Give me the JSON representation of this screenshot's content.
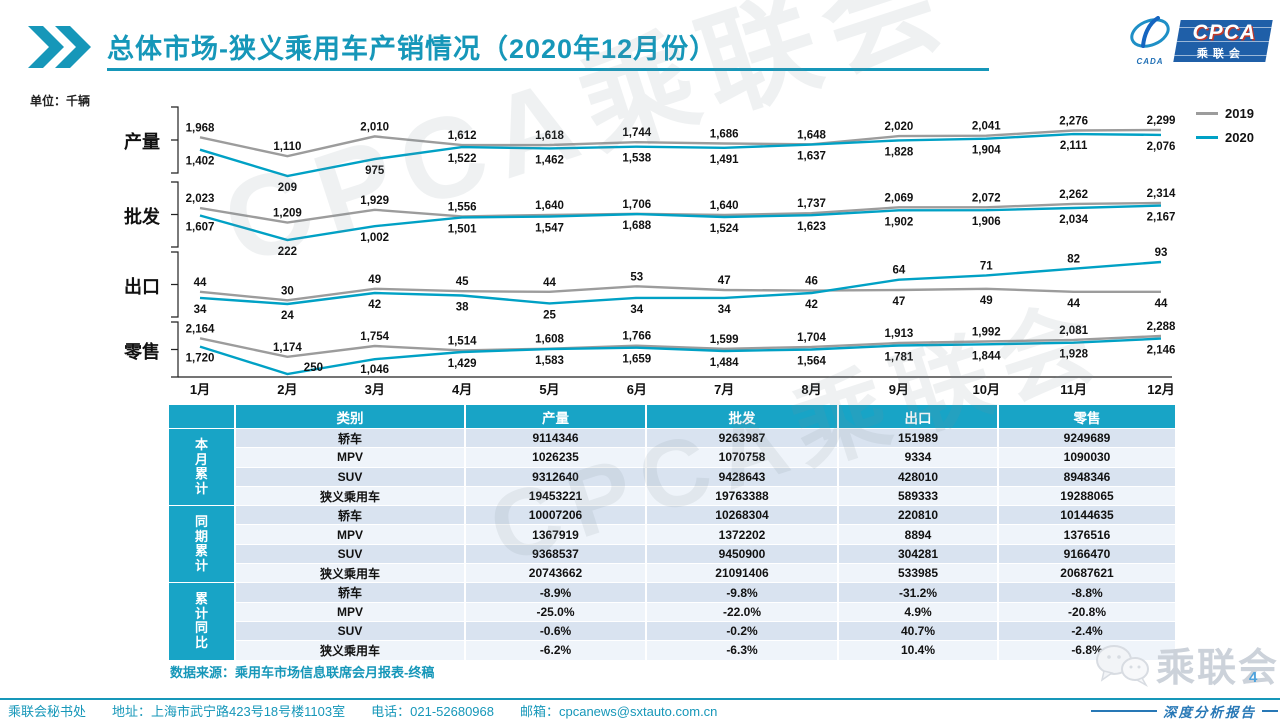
{
  "header": {
    "title": "总体市场-狭义乘用车产销情况（2020年12月份）"
  },
  "logo": {
    "emblem_text": "CADA",
    "main": "CPCA",
    "sub": "乘联会"
  },
  "unit_label": "单位：千辆",
  "chart_data": {
    "type": "line",
    "unit": "千辆",
    "x_labels": [
      "1月",
      "2月",
      "3月",
      "4月",
      "5月",
      "6月",
      "7月",
      "8月",
      "9月",
      "10月",
      "11月",
      "12月"
    ],
    "legend": [
      "2019",
      "2020"
    ],
    "rows": [
      {
        "name": "产量",
        "series": [
          {
            "name": "2019",
            "values": [
              1968,
              1110,
              2010,
              1612,
              1618,
              1744,
              1686,
              1648,
              2020,
              2041,
              2276,
              2299
            ]
          },
          {
            "name": "2020",
            "values": [
              1402,
              209,
              975,
              1522,
              1462,
              1538,
              1491,
              1637,
              1828,
              1904,
              2111,
              2076
            ]
          }
        ]
      },
      {
        "name": "批发",
        "series": [
          {
            "name": "2019",
            "values": [
              2023,
              1209,
              1929,
              1556,
              1640,
              1706,
              1640,
              1737,
              2069,
              2072,
              2262,
              2314
            ]
          },
          {
            "name": "2020",
            "values": [
              1607,
              222,
              1002,
              1501,
              1547,
              1688,
              1524,
              1623,
              1902,
              1906,
              2034,
              2167
            ]
          }
        ]
      },
      {
        "name": "出口",
        "series": [
          {
            "name": "2019",
            "values": [
              44,
              30,
              49,
              45,
              44,
              53,
              47,
              46,
              47,
              49,
              44,
              44
            ]
          },
          {
            "name": "2020",
            "values": [
              34,
              24,
              42,
              38,
              25,
              34,
              34,
              42,
              64,
              71,
              82,
              93
            ]
          }
        ]
      },
      {
        "name": "零售",
        "series": [
          {
            "name": "2019",
            "values": [
              2164,
              1174,
              1754,
              1514,
              1608,
              1766,
              1599,
              1704,
              1913,
              1992,
              2081,
              2288
            ]
          },
          {
            "name": "2020",
            "values": [
              1720,
              250,
              1046,
              1429,
              1583,
              1659,
              1484,
              1564,
              1781,
              1844,
              1928,
              2146
            ]
          }
        ]
      }
    ]
  },
  "table": {
    "headers": [
      "类别",
      "产量",
      "批发",
      "出口",
      "零售"
    ],
    "groups": [
      {
        "label": "本月累计",
        "rows": [
          {
            "name": "轿车",
            "values": [
              "9114346",
              "9263987",
              "151989",
              "9249689"
            ]
          },
          {
            "name": "MPV",
            "values": [
              "1026235",
              "1070758",
              "9334",
              "1090030"
            ]
          },
          {
            "name": "SUV",
            "values": [
              "9312640",
              "9428643",
              "428010",
              "8948346"
            ]
          },
          {
            "name": "狭义乘用车",
            "values": [
              "19453221",
              "19763388",
              "589333",
              "19288065"
            ]
          }
        ]
      },
      {
        "label": "同期累计",
        "rows": [
          {
            "name": "轿车",
            "values": [
              "10007206",
              "10268304",
              "220810",
              "10144635"
            ]
          },
          {
            "name": "MPV",
            "values": [
              "1367919",
              "1372202",
              "8894",
              "1376516"
            ]
          },
          {
            "name": "SUV",
            "values": [
              "9368537",
              "9450900",
              "304281",
              "9166470"
            ]
          },
          {
            "name": "狭义乘用车",
            "values": [
              "20743662",
              "21091406",
              "533985",
              "20687621"
            ]
          }
        ]
      },
      {
        "label": "累计同比",
        "rows": [
          {
            "name": "轿车",
            "values": [
              "-8.9%",
              "-9.8%",
              "-31.2%",
              "-8.8%"
            ]
          },
          {
            "name": "MPV",
            "values": [
              "-25.0%",
              "-22.0%",
              "4.9%",
              "-20.8%"
            ]
          },
          {
            "name": "SUV",
            "values": [
              "-0.6%",
              "-0.2%",
              "40.7%",
              "-2.4%"
            ]
          },
          {
            "name": "狭义乘用车",
            "values": [
              "-6.2%",
              "-6.3%",
              "10.4%",
              "-6.8%"
            ]
          }
        ]
      }
    ]
  },
  "footer": {
    "source": "数据来源：乘用车市场信息联席会月报表-终稿",
    "org": "乘联会秘书处",
    "address": "地址：上海市武宁路423号18号楼1103室",
    "phone": "电话：021-52680968",
    "email": "邮箱：cpcanews@sxtauto.com.cn",
    "page": "4",
    "report_label": "深度分析报告"
  },
  "watermark": {
    "diagonal": "CPCA乘联会",
    "wechat": "乘联会"
  },
  "colors": {
    "accent": "#1697B9",
    "table_header": "#18A4C6",
    "line_2019": "#9C9C9C",
    "line_2020": "#00A1C5",
    "band_odd": "#D9E3F0",
    "band_even": "#EFF4FA",
    "logo_blue": "#1F5FA8"
  }
}
